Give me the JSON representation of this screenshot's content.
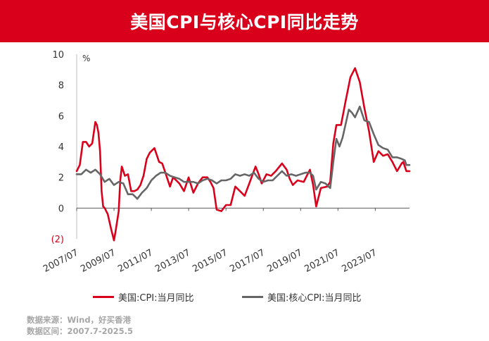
{
  "header": {
    "title": "美国CPI与核心CPI同比走势",
    "bg_color": "#d9001b"
  },
  "chart_data": {
    "type": "line",
    "unit_label": "%",
    "ylim": [
      -2,
      10
    ],
    "yticks": [
      -2,
      0,
      2,
      4,
      6,
      8,
      10
    ],
    "ytick_labels": [
      "(2)",
      "0",
      "2",
      "4",
      "6",
      "8",
      "10"
    ],
    "ytick_colors": [
      "#d9001b",
      "#333333",
      "#333333",
      "#333333",
      "#333333",
      "#333333",
      "#333333"
    ],
    "xlim": [
      "2007-07",
      "2025-05"
    ],
    "xticks": [
      "2007/07",
      "2009/07",
      "2011/07",
      "2013/07",
      "2015/07",
      "2017/07",
      "2019/07",
      "2021/07",
      "2023/07"
    ],
    "grid": false,
    "legend_position": "bottom",
    "series": [
      {
        "name": "美国:CPI:当月同比",
        "color": "#d9001b",
        "points": [
          [
            "2007-07",
            2.4
          ],
          [
            "2007-09",
            2.8
          ],
          [
            "2007-11",
            4.3
          ],
          [
            "2008-01",
            4.3
          ],
          [
            "2008-03",
            4.0
          ],
          [
            "2008-05",
            4.2
          ],
          [
            "2008-07",
            5.6
          ],
          [
            "2008-08",
            5.4
          ],
          [
            "2008-09",
            4.9
          ],
          [
            "2008-10",
            3.7
          ],
          [
            "2008-11",
            1.1
          ],
          [
            "2008-12",
            0.1
          ],
          [
            "2009-01",
            0.0
          ],
          [
            "2009-03",
            -0.4
          ],
          [
            "2009-05",
            -1.3
          ],
          [
            "2009-07",
            -2.1
          ],
          [
            "2009-08",
            -1.5
          ],
          [
            "2009-10",
            -0.2
          ],
          [
            "2009-11",
            1.8
          ],
          [
            "2009-12",
            2.7
          ],
          [
            "2010-02",
            2.1
          ],
          [
            "2010-04",
            2.2
          ],
          [
            "2010-06",
            1.1
          ],
          [
            "2010-08",
            1.1
          ],
          [
            "2010-10",
            1.2
          ],
          [
            "2010-12",
            1.5
          ],
          [
            "2011-02",
            2.1
          ],
          [
            "2011-04",
            3.2
          ],
          [
            "2011-06",
            3.6
          ],
          [
            "2011-09",
            3.9
          ],
          [
            "2011-12",
            3.0
          ],
          [
            "2012-02",
            2.9
          ],
          [
            "2012-04",
            2.3
          ],
          [
            "2012-07",
            1.4
          ],
          [
            "2012-09",
            2.0
          ],
          [
            "2012-11",
            1.8
          ],
          [
            "2013-01",
            1.6
          ],
          [
            "2013-04",
            1.1
          ],
          [
            "2013-07",
            2.0
          ],
          [
            "2013-10",
            1.0
          ],
          [
            "2014-01",
            1.6
          ],
          [
            "2014-04",
            2.0
          ],
          [
            "2014-07",
            2.0
          ],
          [
            "2014-09",
            1.7
          ],
          [
            "2014-11",
            1.3
          ],
          [
            "2015-01",
            -0.1
          ],
          [
            "2015-04",
            -0.2
          ],
          [
            "2015-07",
            0.2
          ],
          [
            "2015-10",
            0.2
          ],
          [
            "2016-01",
            1.4
          ],
          [
            "2016-04",
            1.1
          ],
          [
            "2016-07",
            0.8
          ],
          [
            "2016-10",
            1.6
          ],
          [
            "2017-02",
            2.7
          ],
          [
            "2017-04",
            2.2
          ],
          [
            "2017-06",
            1.6
          ],
          [
            "2017-09",
            2.2
          ],
          [
            "2017-12",
            2.1
          ],
          [
            "2018-03",
            2.4
          ],
          [
            "2018-07",
            2.9
          ],
          [
            "2018-10",
            2.5
          ],
          [
            "2018-12",
            1.9
          ],
          [
            "2019-02",
            1.5
          ],
          [
            "2019-05",
            1.8
          ],
          [
            "2019-09",
            1.7
          ],
          [
            "2019-12",
            2.3
          ],
          [
            "2020-01",
            2.5
          ],
          [
            "2020-03",
            1.5
          ],
          [
            "2020-05",
            0.1
          ],
          [
            "2020-08",
            1.3
          ],
          [
            "2020-12",
            1.4
          ],
          [
            "2021-02",
            1.7
          ],
          [
            "2021-04",
            4.2
          ],
          [
            "2021-06",
            5.4
          ],
          [
            "2021-09",
            5.4
          ],
          [
            "2021-12",
            7.0
          ],
          [
            "2022-03",
            8.5
          ],
          [
            "2022-06",
            9.1
          ],
          [
            "2022-09",
            8.2
          ],
          [
            "2022-12",
            6.5
          ],
          [
            "2023-03",
            5.0
          ],
          [
            "2023-06",
            3.0
          ],
          [
            "2023-09",
            3.7
          ],
          [
            "2023-12",
            3.4
          ],
          [
            "2024-03",
            3.5
          ],
          [
            "2024-06",
            3.0
          ],
          [
            "2024-09",
            2.4
          ],
          [
            "2024-12",
            2.9
          ],
          [
            "2025-01",
            3.0
          ],
          [
            "2025-03",
            2.4
          ],
          [
            "2025-05",
            2.4
          ]
        ]
      },
      {
        "name": "美国:核心CPI:当月同比",
        "color": "#666666",
        "points": [
          [
            "2007-07",
            2.2
          ],
          [
            "2007-10",
            2.2
          ],
          [
            "2008-01",
            2.5
          ],
          [
            "2008-04",
            2.3
          ],
          [
            "2008-07",
            2.5
          ],
          [
            "2008-10",
            2.2
          ],
          [
            "2009-01",
            1.7
          ],
          [
            "2009-04",
            1.9
          ],
          [
            "2009-07",
            1.5
          ],
          [
            "2009-10",
            1.7
          ],
          [
            "2010-01",
            1.6
          ],
          [
            "2010-04",
            0.9
          ],
          [
            "2010-07",
            0.9
          ],
          [
            "2010-10",
            0.6
          ],
          [
            "2011-01",
            1.0
          ],
          [
            "2011-04",
            1.3
          ],
          [
            "2011-07",
            1.8
          ],
          [
            "2011-10",
            2.1
          ],
          [
            "2012-01",
            2.3
          ],
          [
            "2012-04",
            2.3
          ],
          [
            "2012-07",
            2.1
          ],
          [
            "2012-10",
            2.0
          ],
          [
            "2013-01",
            1.9
          ],
          [
            "2013-04",
            1.7
          ],
          [
            "2013-07",
            1.7
          ],
          [
            "2013-10",
            1.7
          ],
          [
            "2014-01",
            1.6
          ],
          [
            "2014-04",
            1.8
          ],
          [
            "2014-07",
            1.9
          ],
          [
            "2014-10",
            1.8
          ],
          [
            "2015-01",
            1.6
          ],
          [
            "2015-04",
            1.8
          ],
          [
            "2015-07",
            1.8
          ],
          [
            "2015-10",
            1.9
          ],
          [
            "2016-01",
            2.2
          ],
          [
            "2016-04",
            2.1
          ],
          [
            "2016-07",
            2.2
          ],
          [
            "2016-10",
            2.1
          ],
          [
            "2017-01",
            2.3
          ],
          [
            "2017-04",
            1.9
          ],
          [
            "2017-07",
            1.7
          ],
          [
            "2017-10",
            1.8
          ],
          [
            "2018-01",
            1.8
          ],
          [
            "2018-04",
            2.1
          ],
          [
            "2018-07",
            2.4
          ],
          [
            "2018-10",
            2.1
          ],
          [
            "2019-01",
            2.2
          ],
          [
            "2019-04",
            2.1
          ],
          [
            "2019-07",
            2.2
          ],
          [
            "2019-10",
            2.3
          ],
          [
            "2020-01",
            2.3
          ],
          [
            "2020-03",
            2.1
          ],
          [
            "2020-05",
            1.2
          ],
          [
            "2020-08",
            1.7
          ],
          [
            "2020-11",
            1.6
          ],
          [
            "2021-02",
            1.3
          ],
          [
            "2021-04",
            3.0
          ],
          [
            "2021-06",
            4.5
          ],
          [
            "2021-08",
            4.0
          ],
          [
            "2021-10",
            4.6
          ],
          [
            "2021-12",
            5.5
          ],
          [
            "2022-02",
            6.4
          ],
          [
            "2022-04",
            6.2
          ],
          [
            "2022-06",
            5.9
          ],
          [
            "2022-09",
            6.6
          ],
          [
            "2022-12",
            5.7
          ],
          [
            "2023-03",
            5.6
          ],
          [
            "2023-06",
            4.8
          ],
          [
            "2023-09",
            4.1
          ],
          [
            "2023-12",
            3.9
          ],
          [
            "2024-03",
            3.8
          ],
          [
            "2024-06",
            3.3
          ],
          [
            "2024-09",
            3.3
          ],
          [
            "2024-12",
            3.2
          ],
          [
            "2025-02",
            3.1
          ],
          [
            "2025-03",
            2.8
          ],
          [
            "2025-05",
            2.8
          ]
        ]
      }
    ]
  },
  "source": {
    "line1": "数据来源：Wind，好买香港",
    "line2": "数据区间：2007.7-2025.5"
  }
}
